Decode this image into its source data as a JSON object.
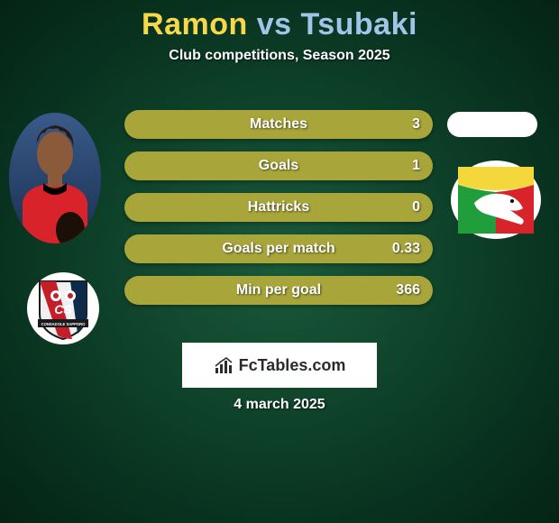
{
  "title": {
    "player1": "Ramon",
    "vs": " vs ",
    "player2": "Tsubaki",
    "p1_color": "#f7d84a",
    "p2_color": "#9fc5e8"
  },
  "subtitle": "Club competitions, Season 2025",
  "date": "4 march 2025",
  "brand": "FcTables.com",
  "stat_bar_color": "#a8a63b",
  "stats": [
    {
      "label": "Matches",
      "value": "3"
    },
    {
      "label": "Goals",
      "value": "1"
    },
    {
      "label": "Hattricks",
      "value": "0"
    },
    {
      "label": "Goals per match",
      "value": "0.33"
    },
    {
      "label": "Min per goal",
      "value": "366"
    }
  ],
  "left_badge": {
    "shield_bg": "#f0f0f0",
    "shield_border": "#1a1a1a",
    "stripe_red": "#c41e28",
    "stripe_navy": "#0e2a4a",
    "banner": "#1a1a1a",
    "banner_text": "CONSADOLE SAPPORO",
    "cs_text": "CS"
  },
  "right_badge": {
    "bg": "#ffffff",
    "yellow": "#f4d73a",
    "green": "#1f9e3b",
    "red": "#d8232a",
    "bird": "#ffffff"
  },
  "player_photo": {
    "bg_top": "#3a5a8a",
    "bg_bottom": "#1a3050",
    "shirt": "#d8232a",
    "collar": "#000000",
    "skin": "#8a5a3a",
    "hair": "#2a1810"
  }
}
